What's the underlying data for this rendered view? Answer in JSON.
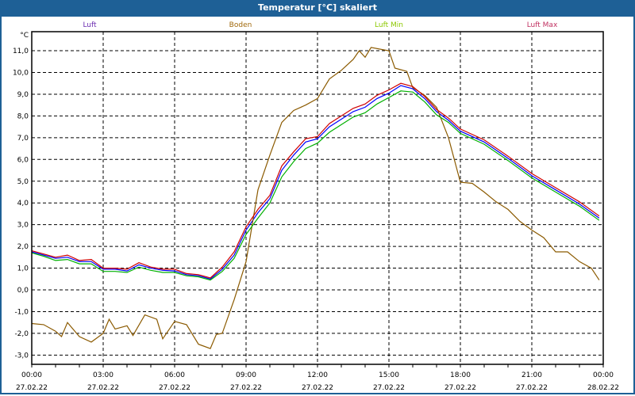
{
  "window": {
    "title": "Temperatur [°C] skaliert"
  },
  "chart_data": {
    "type": "line",
    "title": "Temperatur [°C] skaliert",
    "ylabel": "°C",
    "xlabel": "",
    "ylim": [
      -3.45,
      12.2
    ],
    "xlim": [
      0,
      24
    ],
    "grid": true,
    "legend_placement": "top",
    "y_ticks": [
      11,
      10,
      9,
      8,
      7,
      6,
      5,
      4,
      3,
      2,
      1,
      0,
      -1,
      -2,
      -3
    ],
    "y_tick_labels": [
      "11,0",
      "10,0",
      "9,0",
      "8,0",
      "7,0",
      "6,0",
      "5,0",
      "4,0",
      "3,0",
      "2,0",
      "1,0",
      "0,0",
      "-1,0",
      "-2,0",
      "-3,0"
    ],
    "x_ticks": [
      0,
      3,
      6,
      9,
      12,
      15,
      18,
      21,
      24
    ],
    "x_tick_labels": [
      {
        "time": "00:00",
        "date": "27.02.22"
      },
      {
        "time": "03:00",
        "date": "27.02.22"
      },
      {
        "time": "06:00",
        "date": "27.02.22"
      },
      {
        "time": "09:00",
        "date": "27.02.22"
      },
      {
        "time": "12:00",
        "date": "27.02.22"
      },
      {
        "time": "15:00",
        "date": "27.02.22"
      },
      {
        "time": "18:00",
        "date": "27.02.22"
      },
      {
        "time": "21:00",
        "date": "27.02.22"
      },
      {
        "time": "00:00",
        "date": "28.02.22"
      }
    ],
    "series": [
      {
        "name": "Luft",
        "color": "#0000ff",
        "label_color": "#6a2bb0",
        "x": [
          0,
          0.5,
          1,
          1.5,
          2,
          2.5,
          3,
          3.5,
          4,
          4.5,
          5,
          5.5,
          6,
          6.5,
          7,
          7.5,
          8,
          8.5,
          9,
          9.5,
          10,
          10.5,
          11,
          11.5,
          12,
          12.5,
          13,
          13.5,
          14,
          14.5,
          15,
          15.5,
          16,
          16.5,
          17,
          17.5,
          18,
          19,
          20,
          21,
          22,
          23,
          23.83
        ],
        "y": [
          1.75,
          1.6,
          1.45,
          1.5,
          1.3,
          1.3,
          0.95,
          0.95,
          0.87,
          1.15,
          1.0,
          0.9,
          0.87,
          0.7,
          0.65,
          0.5,
          0.95,
          1.6,
          2.75,
          3.55,
          4.2,
          5.5,
          6.2,
          6.8,
          6.95,
          7.5,
          7.85,
          8.2,
          8.4,
          8.8,
          9.05,
          9.4,
          9.25,
          8.8,
          8.2,
          7.8,
          7.3,
          6.8,
          6.05,
          5.25,
          4.6,
          3.95,
          3.3
        ]
      },
      {
        "name": "Boden",
        "color": "#8b5a00",
        "label_color": "#a0680a",
        "x": [
          0,
          0.5,
          1,
          1.25,
          1.5,
          2,
          2.5,
          3,
          3.25,
          3.5,
          4,
          4.25,
          4.75,
          5.25,
          5.5,
          6,
          6.5,
          7,
          7.5,
          7.75,
          8,
          8.5,
          9,
          9.5,
          10,
          10.5,
          11,
          11.5,
          12,
          12.5,
          13,
          13.5,
          13.75,
          14,
          14.25,
          15,
          15.25,
          15.75,
          16,
          16.5,
          17,
          17.5,
          18,
          18.5,
          19,
          19.5,
          20,
          20.5,
          21,
          21.5,
          22,
          22.5,
          23,
          23.5,
          23.83
        ],
        "y": [
          -1.55,
          -1.6,
          -1.9,
          -2.15,
          -1.5,
          -2.15,
          -2.4,
          -2.0,
          -1.35,
          -1.8,
          -1.65,
          -2.1,
          -1.15,
          -1.35,
          -2.25,
          -1.45,
          -1.6,
          -2.5,
          -2.7,
          -2.05,
          -2.0,
          -0.45,
          1.3,
          4.6,
          6.2,
          7.7,
          8.25,
          8.5,
          8.8,
          9.7,
          10.1,
          10.6,
          11.0,
          10.7,
          11.15,
          11.0,
          10.2,
          10.05,
          9.3,
          8.95,
          8.4,
          7.0,
          4.95,
          4.9,
          4.5,
          4.05,
          3.7,
          3.15,
          2.75,
          2.4,
          1.75,
          1.75,
          1.3,
          1.0,
          0.45
        ]
      },
      {
        "name": "Luft Min",
        "color": "#00b000",
        "label_color": "#8cc800",
        "x": [
          0,
          0.5,
          1,
          1.5,
          2,
          2.5,
          3,
          3.5,
          4,
          4.5,
          5,
          5.5,
          6,
          6.5,
          7,
          7.5,
          8,
          8.5,
          9,
          9.5,
          10,
          10.5,
          11,
          11.5,
          12,
          12.5,
          13,
          13.5,
          14,
          14.5,
          15,
          15.5,
          16,
          16.5,
          17,
          17.5,
          18,
          19,
          20,
          21,
          22,
          23,
          23.83
        ],
        "y": [
          1.7,
          1.55,
          1.35,
          1.4,
          1.2,
          1.2,
          0.85,
          0.85,
          0.8,
          1.05,
          0.9,
          0.8,
          0.8,
          0.65,
          0.6,
          0.45,
          0.85,
          1.45,
          2.55,
          3.3,
          4.0,
          5.2,
          5.9,
          6.5,
          6.75,
          7.25,
          7.6,
          7.95,
          8.15,
          8.55,
          8.85,
          9.15,
          9.1,
          8.65,
          8.05,
          7.7,
          7.2,
          6.7,
          5.95,
          5.15,
          4.5,
          3.85,
          3.2
        ]
      },
      {
        "name": "Luft Max",
        "color": "#d00000",
        "label_color": "#c03060",
        "x": [
          0,
          0.5,
          1,
          1.5,
          2,
          2.5,
          3,
          3.5,
          4,
          4.5,
          5,
          5.5,
          6,
          6.5,
          7,
          7.5,
          8,
          8.5,
          9,
          9.5,
          10,
          10.5,
          11,
          11.5,
          12,
          12.5,
          13,
          13.5,
          14,
          14.5,
          15,
          15.5,
          16,
          16.5,
          17,
          17.5,
          18,
          19,
          20,
          21,
          22,
          23,
          23.83
        ],
        "y": [
          1.8,
          1.65,
          1.5,
          1.6,
          1.35,
          1.4,
          1.0,
          1.0,
          0.95,
          1.25,
          1.05,
          0.95,
          0.95,
          0.75,
          0.7,
          0.55,
          1.05,
          1.75,
          2.9,
          3.7,
          4.35,
          5.7,
          6.35,
          6.95,
          7.05,
          7.65,
          8.0,
          8.35,
          8.55,
          8.95,
          9.2,
          9.5,
          9.35,
          8.9,
          8.3,
          7.9,
          7.4,
          6.9,
          6.15,
          5.35,
          4.7,
          4.05,
          3.4
        ]
      }
    ]
  }
}
